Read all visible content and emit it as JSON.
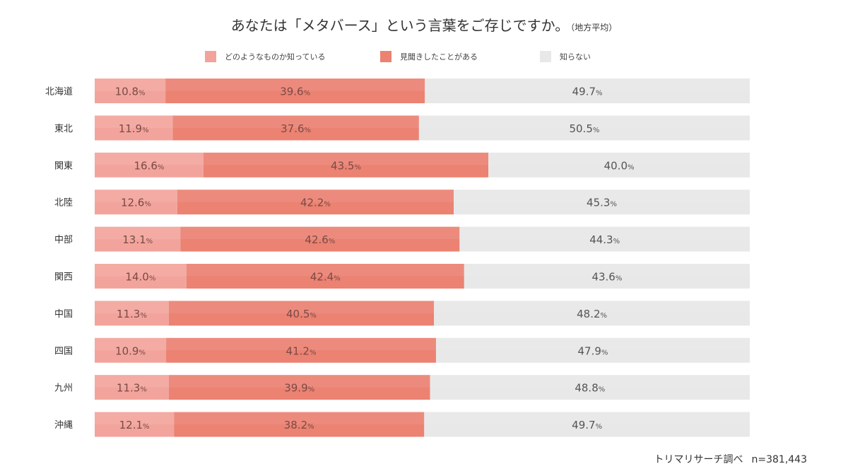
{
  "title": "あなたは「メタバース」という言葉をご存じですか。",
  "subtitle": "（地方平均）",
  "credit": "トリマリサーチ調べ",
  "sample": "n=381,443",
  "colors": {
    "know_well": "#f2a49c",
    "heard": "#eb8272",
    "dont_know": "#e8e8e8"
  },
  "chart_data": {
    "type": "bar",
    "orientation": "horizontal",
    "stacked": true,
    "percent_stacked": true,
    "unit": "%",
    "xlim": [
      0,
      100
    ],
    "grid": false,
    "legend_position": "top",
    "categories": [
      "北海道",
      "東北",
      "関東",
      "北陸",
      "中部",
      "関西",
      "中国",
      "四国",
      "九州",
      "沖縄"
    ],
    "series": [
      {
        "name": "どのようなものか知っている",
        "color": "#f2a49c",
        "values": [
          10.8,
          11.9,
          16.6,
          12.6,
          13.1,
          14.0,
          11.3,
          10.9,
          11.3,
          12.1
        ]
      },
      {
        "name": "見聞きしたことがある",
        "color": "#eb8272",
        "values": [
          39.6,
          37.6,
          43.5,
          42.2,
          42.6,
          42.4,
          40.5,
          41.2,
          39.9,
          38.2
        ]
      },
      {
        "name": "知らない",
        "color": "#e8e8e8",
        "values": [
          49.7,
          50.5,
          40.0,
          45.3,
          44.3,
          43.6,
          48.2,
          47.9,
          48.8,
          49.7
        ]
      }
    ]
  }
}
